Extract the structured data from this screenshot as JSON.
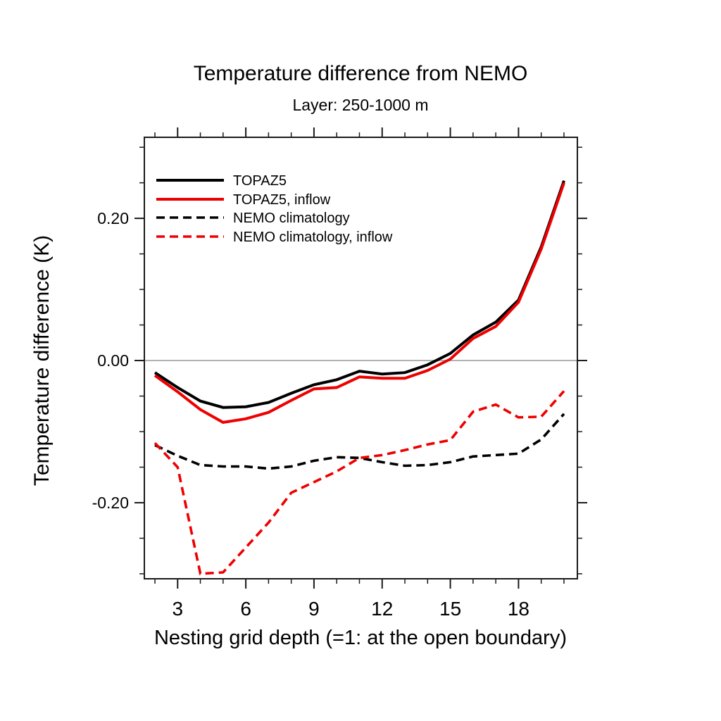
{
  "title": "Temperature difference from NEMO",
  "subtitle": "Layer: 250-1000 m",
  "x_axis_label": "Nesting grid depth (=1: at the open boundary)",
  "y_axis_label": "Temperature difference (K)",
  "colors": {
    "black_series": "#000000",
    "red_series": "#ee0000",
    "zero_line": "#b2b2b2",
    "axis": "#1a1a1a",
    "background": "#ffffff"
  },
  "chart_data": {
    "type": "line",
    "title": "Temperature difference from NEMO",
    "subtitle": "Layer: 250-1000 m",
    "xlabel": "Nesting grid depth (=1: at the open boundary)",
    "ylabel": "Temperature difference (K)",
    "xlim": [
      1.535,
      20.59
    ],
    "ylim": [
      -0.307,
      0.314
    ],
    "grid": "zero-line-only",
    "legend_position": "top-left-inside",
    "x_major_ticks": [
      3,
      6,
      9,
      12,
      15,
      18
    ],
    "x_minor_ticks": [
      2,
      3,
      4,
      5,
      6,
      7,
      8,
      9,
      10,
      11,
      12,
      13,
      14,
      15,
      16,
      17,
      18,
      19,
      20
    ],
    "y_major_ticks": [
      -0.2,
      0.0,
      0.2
    ],
    "y_tick_labels": [
      "-0.20",
      "0.00",
      "0.20"
    ],
    "y_minor_ticks": [
      -0.3,
      -0.25,
      -0.15,
      -0.1,
      -0.05,
      0.05,
      0.1,
      0.15,
      0.25,
      0.3
    ],
    "x": [
      2,
      3,
      4,
      5,
      6,
      7,
      8,
      9,
      10,
      11,
      12,
      13,
      14,
      15,
      16,
      17,
      18,
      19,
      20
    ],
    "series": [
      {
        "name": "TOPAZ5",
        "color": "black",
        "style": "solid",
        "values": [
          -0.017,
          -0.038,
          -0.057,
          -0.066,
          -0.065,
          -0.059,
          -0.046,
          -0.034,
          -0.027,
          -0.015,
          -0.019,
          -0.017,
          -0.006,
          0.01,
          0.036,
          0.054,
          0.085,
          0.16,
          0.253
        ]
      },
      {
        "name": "TOPAZ5, inflow",
        "color": "red",
        "style": "solid",
        "values": [
          -0.021,
          -0.044,
          -0.069,
          -0.087,
          -0.082,
          -0.073,
          -0.056,
          -0.04,
          -0.038,
          -0.023,
          -0.025,
          -0.025,
          -0.014,
          0.002,
          0.031,
          0.048,
          0.082,
          0.157,
          0.25
        ]
      },
      {
        "name": "NEMO climatology",
        "color": "black",
        "style": "dashed",
        "values": [
          -0.119,
          -0.134,
          -0.147,
          -0.149,
          -0.149,
          -0.152,
          -0.149,
          -0.141,
          -0.136,
          -0.137,
          -0.143,
          -0.148,
          -0.147,
          -0.143,
          -0.135,
          -0.133,
          -0.131,
          -0.111,
          -0.075
        ]
      },
      {
        "name": "NEMO climatology, inflow",
        "color": "red",
        "style": "dashed",
        "values": [
          -0.116,
          -0.15,
          -0.3,
          -0.298,
          -0.263,
          -0.228,
          -0.186,
          -0.171,
          -0.156,
          -0.137,
          -0.133,
          -0.126,
          -0.118,
          -0.112,
          -0.072,
          -0.062,
          -0.08,
          -0.079,
          -0.043
        ]
      }
    ]
  }
}
